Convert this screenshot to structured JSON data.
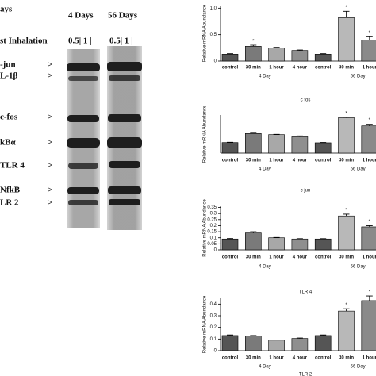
{
  "gel": {
    "time_header": "ays",
    "groups": [
      "4 Days",
      "56 Days"
    ],
    "inhalation_label": "st Inhalation",
    "lane_labels": [
      "0.5| 1 |",
      "0.5| 1 |"
    ],
    "markers": [
      {
        "label": "-jun",
        "arrow": ">"
      },
      {
        "label": "L-1β",
        "arrow": ">"
      },
      {
        "label": "c-fos",
        "arrow": ">"
      },
      {
        "label": "kBα",
        "arrow": ">"
      },
      {
        "label": "TLR 4",
        "arrow": ">"
      },
      {
        "label": "NfkB",
        "arrow": ">"
      },
      {
        "label": "LR 2",
        "arrow": ">"
      }
    ]
  },
  "chart_data": [
    {
      "type": "bar",
      "ylabel": "Relative mRNA Abundance",
      "caption": "c fos",
      "categories": [
        "control",
        "30 min",
        "1 hour",
        "4 hour",
        "control",
        "30 min",
        "1 hour"
      ],
      "groups": [
        "4 Day",
        "56 Day"
      ],
      "colors": [
        "#555555",
        "#7a7a7a",
        "#a8a8a8",
        "#8f8f8f",
        "#555555",
        "#b8b8b8",
        "#8a8a8a"
      ],
      "values": [
        0.13,
        0.28,
        0.25,
        0.2,
        0.13,
        0.82,
        0.4
      ],
      "errors": [
        0.01,
        0.02,
        0.01,
        0.01,
        0.01,
        0.12,
        0.06
      ],
      "significance": [
        null,
        "*",
        null,
        null,
        null,
        "*",
        "*"
      ],
      "ylim": [
        0,
        1.05
      ],
      "yticks": [
        0,
        0.5,
        {
          "value": 1,
          "label": "1.0"
        }
      ]
    },
    {
      "type": "bar",
      "ylabel": "Relative mRNA Abundance",
      "caption": "c jun",
      "categories": [
        "control",
        "30 min",
        "1 hour",
        "4 hour",
        "control",
        "30 min",
        "1 hour"
      ],
      "groups": [
        "4 Day",
        "56 Day"
      ],
      "colors": [
        "#555555",
        "#7a7a7a",
        "#a8a8a8",
        "#8f8f8f",
        "#555555",
        "#b8b8b8",
        "#8a8a8a"
      ],
      "values": [
        0.97,
        1.8,
        1.7,
        1.5,
        0.95,
        3.25,
        2.5
      ],
      "errors": [
        0.03,
        0.04,
        0.03,
        0.08,
        0.03,
        0.05,
        0.15
      ],
      "significance": [
        null,
        null,
        null,
        null,
        null,
        "*",
        "*"
      ],
      "ylim": [
        0,
        3.5
      ]
    },
    {
      "type": "bar",
      "ylabel": "Relative mRNA Abundance",
      "caption": "TLR 4",
      "categories": [
        "control",
        "30 min",
        "1 hour",
        "4 hour",
        "control",
        "30 min",
        "1 hour"
      ],
      "groups": [
        "4 Day",
        "56 Day"
      ],
      "colors": [
        "#555555",
        "#7a7a7a",
        "#a8a8a8",
        "#8f8f8f",
        "#555555",
        "#b8b8b8",
        "#8a8a8a"
      ],
      "values": [
        0.09,
        0.14,
        0.1,
        0.09,
        0.09,
        0.28,
        0.19
      ],
      "errors": [
        0.005,
        0.01,
        0.003,
        0.003,
        0.003,
        0.015,
        0.01
      ],
      "significance": [
        null,
        null,
        null,
        null,
        null,
        "*",
        "*"
      ],
      "ylim": [
        0,
        0.36
      ],
      "yticks": [
        0,
        0.05,
        0.1,
        0.15,
        0.2,
        0.25,
        0.3,
        0.35
      ]
    },
    {
      "type": "bar",
      "ylabel": "Relative mRNA Abundance",
      "caption": "TLR 2",
      "categories": [
        "control",
        "30 min",
        "1 hour",
        "4 hour",
        "control",
        "30 min",
        "1 hour"
      ],
      "groups": [
        "4 Day",
        "56 Day"
      ],
      "colors": [
        "#555555",
        "#7a7a7a",
        "#a8a8a8",
        "#8f8f8f",
        "#555555",
        "#b8b8b8",
        "#8a8a8a"
      ],
      "values": [
        0.13,
        0.125,
        0.09,
        0.105,
        0.13,
        0.34,
        0.43
      ],
      "errors": [
        0.005,
        0.005,
        0.003,
        0.004,
        0.005,
        0.02,
        0.04
      ],
      "significance": [
        null,
        null,
        null,
        null,
        null,
        "*",
        "*"
      ],
      "ylim": [
        0,
        0.45
      ],
      "yticks": [
        0,
        0.1,
        0.2,
        0.3,
        0.4
      ]
    }
  ]
}
